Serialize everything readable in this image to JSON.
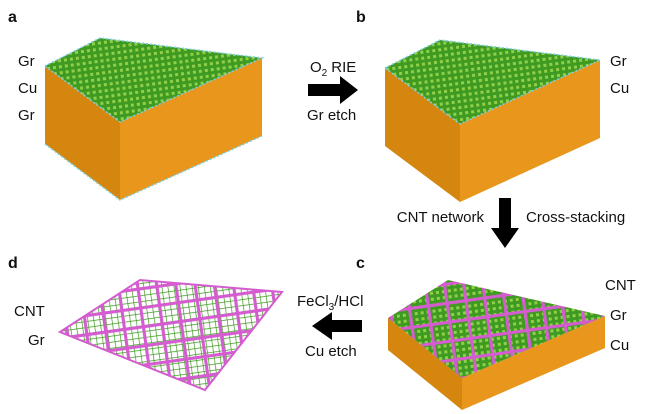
{
  "panels": [
    {
      "label": "a",
      "layers": [
        "Gr",
        "Cu",
        "Gr"
      ]
    },
    {
      "label": "b",
      "layers": [
        "Gr",
        "Cu"
      ]
    },
    {
      "label": "c",
      "layers": [
        "CNT",
        "Gr",
        "Cu"
      ]
    },
    {
      "label": "d",
      "layers": [
        "CNT",
        "Gr"
      ]
    }
  ],
  "steps": [
    {
      "top": {
        "text": "O",
        "sub": "2",
        "rest": "RIE"
      },
      "bottom": "Gr etch"
    },
    {
      "left": "CNT network",
      "right": "Cross-stacking"
    },
    {
      "top": {
        "text": "FeCl",
        "sub": "3",
        "rest": "/HCl"
      },
      "bottom": "Cu etch"
    }
  ]
}
